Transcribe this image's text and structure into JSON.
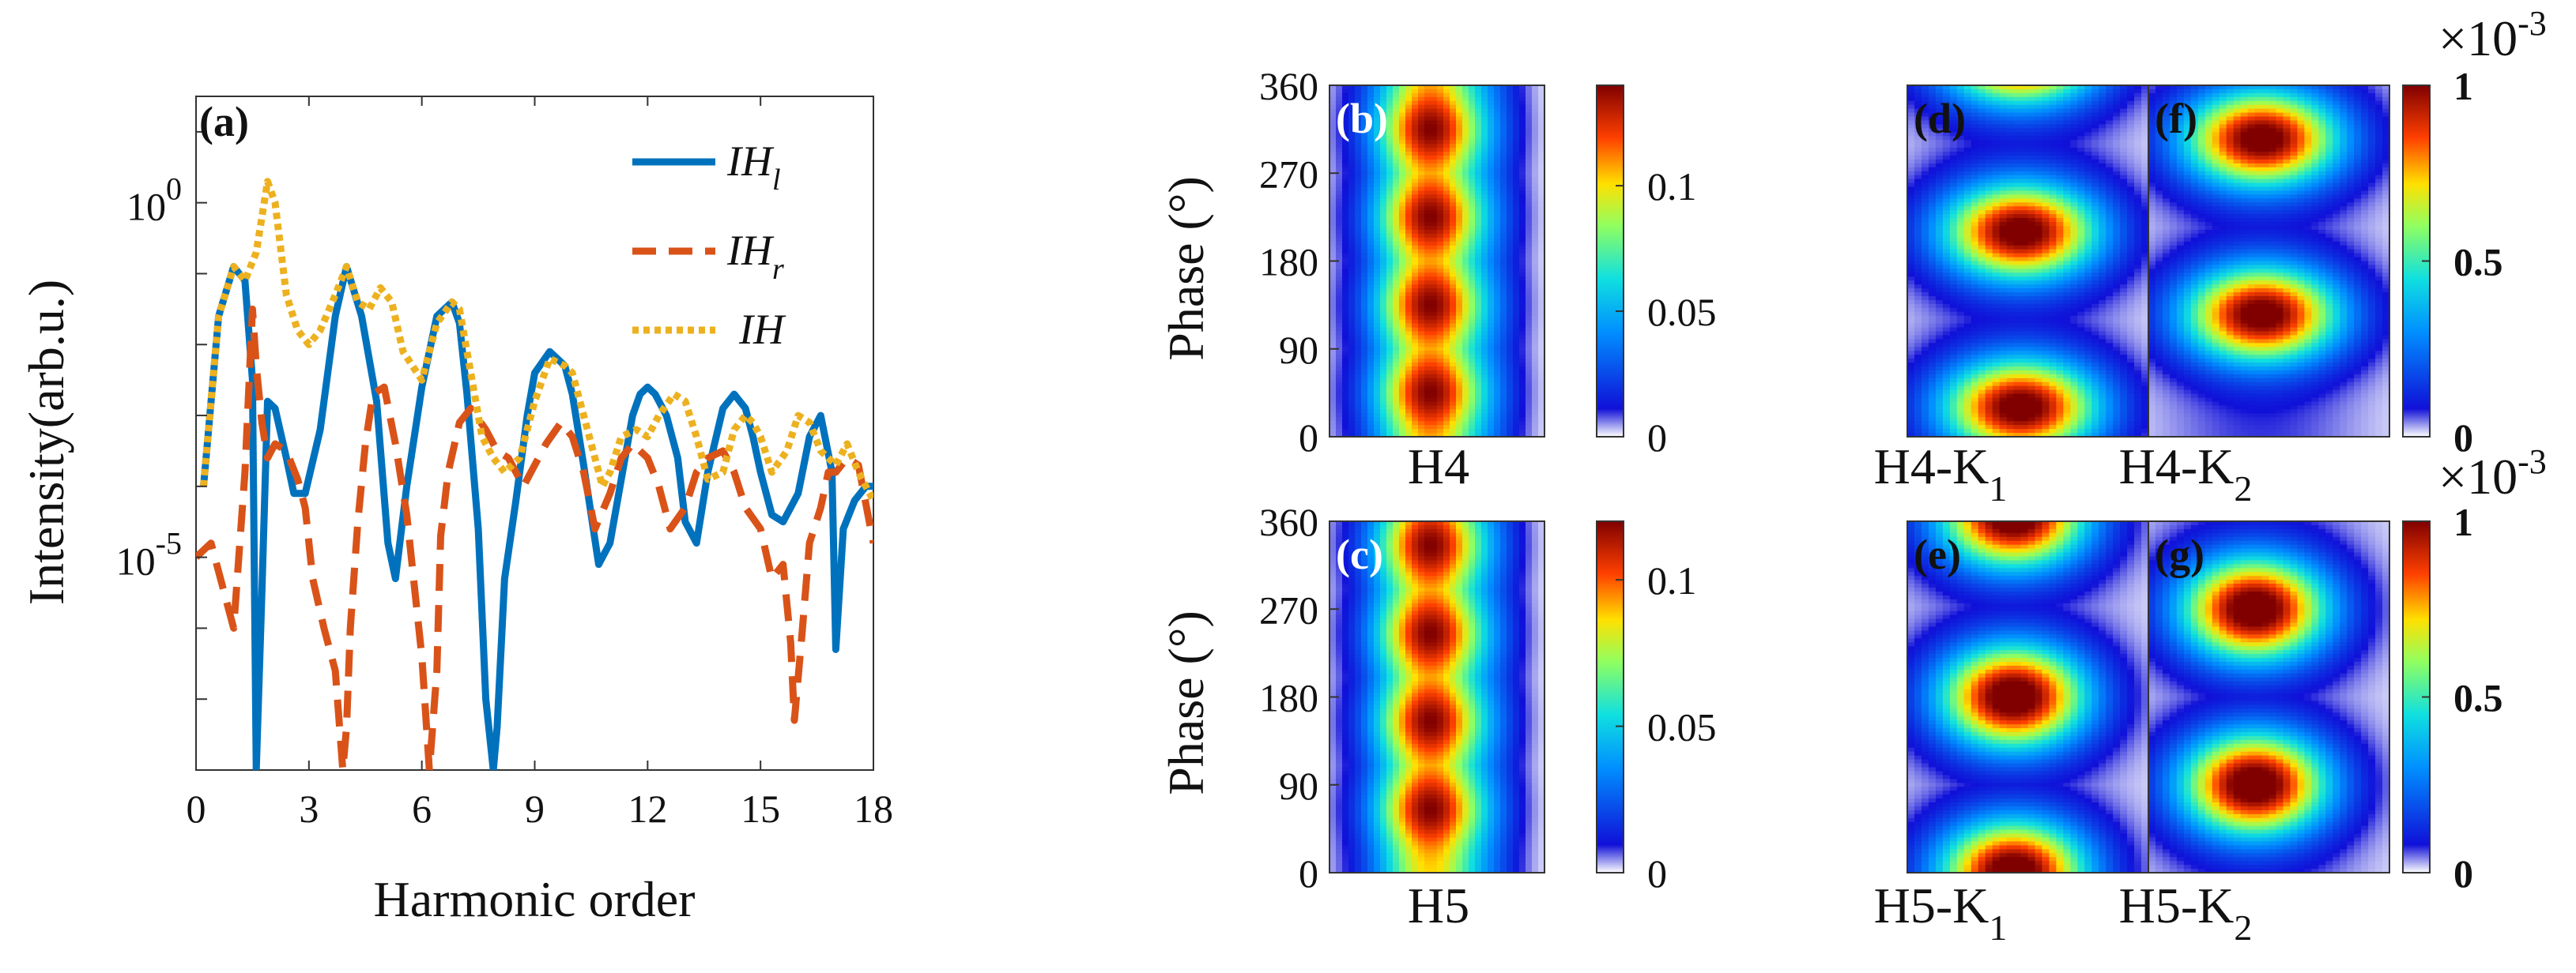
{
  "chart_data": [
    {
      "panel": "(a)",
      "type": "line",
      "yscale": "log",
      "xlabel": "Harmonic order",
      "ylabel": "Intensity(arb.u.)",
      "xlim": [
        0,
        18
      ],
      "ylim_exp": [
        -8,
        1.5
      ],
      "xticks": [
        "0",
        "3",
        "6",
        "9",
        "12",
        "15",
        "18"
      ],
      "yticks": [
        {
          "base": "10",
          "exp": "0",
          "value_exp": 0
        },
        {
          "base": "10",
          "exp": "-5",
          "value_exp": -5
        }
      ],
      "series": [
        {
          "name": "IH",
          "sub": "l",
          "color": "#0072BD",
          "dash": "solid",
          "x": [
            0.2,
            0.6,
            1.0,
            1.3,
            1.5,
            1.6,
            1.75,
            1.9,
            2.1,
            2.4,
            2.6,
            2.9,
            3.3,
            3.7,
            4.0,
            4.4,
            4.8,
            5.1,
            5.3,
            5.6,
            6.0,
            6.4,
            6.8,
            7.0,
            7.2,
            7.5,
            7.7,
            7.9,
            8.0,
            8.2,
            8.5,
            8.8,
            9.0,
            9.4,
            9.8,
            10.0,
            10.3,
            10.7,
            11.0,
            11.3,
            11.6,
            11.8,
            12.0,
            12.2,
            12.5,
            12.8,
            13.0,
            13.3,
            13.6,
            14.0,
            14.3,
            14.6,
            14.8,
            15.0,
            15.3,
            15.6,
            16.0,
            16.3,
            16.6,
            16.9,
            17.0,
            17.2,
            17.5,
            17.8,
            18.0
          ],
          "logy": [
            -4.0,
            -1.6,
            -0.9,
            -1.1,
            -2.5,
            -8.0,
            -5.5,
            -2.8,
            -2.9,
            -3.6,
            -4.1,
            -4.1,
            -3.2,
            -1.6,
            -0.9,
            -1.6,
            -2.8,
            -4.8,
            -5.3,
            -4.0,
            -2.6,
            -1.6,
            -1.4,
            -1.7,
            -2.7,
            -4.6,
            -7.0,
            -8.0,
            -7.4,
            -5.3,
            -4.2,
            -3.0,
            -2.4,
            -2.1,
            -2.3,
            -2.7,
            -3.7,
            -5.1,
            -4.8,
            -3.9,
            -3.0,
            -2.7,
            -2.6,
            -2.7,
            -3.0,
            -3.6,
            -4.5,
            -4.8,
            -3.8,
            -2.9,
            -2.7,
            -2.9,
            -3.3,
            -3.8,
            -4.4,
            -4.5,
            -4.1,
            -3.3,
            -3.0,
            -3.8,
            -6.3,
            -4.6,
            -4.2,
            -4.0,
            -4.0
          ]
        },
        {
          "name": "IH",
          "sub": "r",
          "color": "#D95319",
          "dash": "dashed",
          "x": [
            0.0,
            0.4,
            0.7,
            1.0,
            1.3,
            1.5,
            1.6,
            1.75,
            1.9,
            2.1,
            2.4,
            2.7,
            2.9,
            3.1,
            3.4,
            3.7,
            3.9,
            4.0,
            4.1,
            4.3,
            4.5,
            4.7,
            5.0,
            5.3,
            5.6,
            6.0,
            6.2,
            6.4,
            6.5,
            6.7,
            7.0,
            7.3,
            7.7,
            8.0,
            8.3,
            8.7,
            9.0,
            9.3,
            9.7,
            10.0,
            10.3,
            10.6,
            11.0,
            11.3,
            11.6,
            12.0,
            12.3,
            12.6,
            13.0,
            13.3,
            13.6,
            14.0,
            14.3,
            14.6,
            15.0,
            15.3,
            15.6,
            15.8,
            15.9,
            16.1,
            16.3,
            16.6,
            16.8,
            17.0,
            17.3,
            17.6,
            18.0
          ],
          "logy": [
            -5.0,
            -4.8,
            -5.4,
            -6.0,
            -3.8,
            -1.5,
            -2.3,
            -3.1,
            -3.6,
            -3.4,
            -3.5,
            -3.9,
            -4.3,
            -5.3,
            -6.0,
            -6.6,
            -8.0,
            -7.4,
            -6.0,
            -4.5,
            -3.4,
            -2.7,
            -2.6,
            -3.4,
            -4.4,
            -6.4,
            -8.0,
            -6.6,
            -4.7,
            -3.8,
            -3.1,
            -2.9,
            -3.2,
            -3.5,
            -3.6,
            -4.0,
            -3.7,
            -3.4,
            -3.1,
            -3.3,
            -3.8,
            -4.6,
            -4.1,
            -3.6,
            -3.4,
            -3.6,
            -4.0,
            -4.6,
            -4.3,
            -3.8,
            -3.6,
            -3.5,
            -3.8,
            -4.3,
            -4.6,
            -5.3,
            -5.1,
            -6.2,
            -7.3,
            -6.1,
            -4.8,
            -4.3,
            -3.8,
            -3.8,
            -3.6,
            -3.7,
            -4.8
          ]
        },
        {
          "name": "IH",
          "sub": "",
          "color": "#EDB120",
          "dash": "dotted",
          "x": [
            0.2,
            0.6,
            1.0,
            1.3,
            1.6,
            1.9,
            2.1,
            2.4,
            2.7,
            3.0,
            3.3,
            3.7,
            4.0,
            4.3,
            4.6,
            4.9,
            5.2,
            5.5,
            6.0,
            6.4,
            6.8,
            7.0,
            7.3,
            7.6,
            7.9,
            8.2,
            8.6,
            9.0,
            9.4,
            9.8,
            10.0,
            10.4,
            10.8,
            11.0,
            11.3,
            11.7,
            12.0,
            12.3,
            12.7,
            13.0,
            13.3,
            13.6,
            14.0,
            14.3,
            14.6,
            14.8,
            15.0,
            15.3,
            15.7,
            16.0,
            16.3,
            16.6,
            17.0,
            17.3,
            17.6,
            18.0
          ],
          "logy": [
            -4.0,
            -1.6,
            -0.9,
            -1.1,
            -0.7,
            0.3,
            0.0,
            -1.3,
            -1.8,
            -2.0,
            -1.8,
            -1.3,
            -0.9,
            -1.4,
            -1.5,
            -1.2,
            -1.4,
            -2.1,
            -2.5,
            -1.7,
            -1.4,
            -1.5,
            -2.4,
            -3.3,
            -3.6,
            -3.8,
            -3.6,
            -2.8,
            -2.2,
            -2.3,
            -2.4,
            -3.2,
            -4.0,
            -3.8,
            -3.3,
            -3.2,
            -3.3,
            -3.0,
            -2.7,
            -2.8,
            -3.3,
            -3.9,
            -3.8,
            -3.2,
            -3.0,
            -3.1,
            -3.3,
            -3.8,
            -3.5,
            -3.0,
            -3.1,
            -3.5,
            -3.7,
            -3.4,
            -3.8,
            -4.2
          ]
        }
      ]
    },
    {
      "type": "heatmap",
      "ylabel_top": "Phase (°)",
      "ylabel_bottom": "Phase (°)",
      "yticks": [
        "0",
        "90",
        "180",
        "270",
        "360"
      ],
      "panels": [
        {
          "label": "(b)",
          "xlabel": "H4",
          "group": "top-left",
          "peaks_deg": [
            45,
            135,
            225,
            315
          ],
          "amp": 1.0,
          "style": "band"
        },
        {
          "label": "(c)",
          "xlabel": "H5",
          "group": "bottom-left",
          "peaks_deg": [
            65,
            155,
            245,
            335
          ],
          "amp": 1.0,
          "style": "band"
        },
        {
          "label": "(d)",
          "xlabel_main": "H4-K",
          "xlabel_sub": "1",
          "group": "top-right",
          "peaks_deg": [
            30,
            210,
            390
          ],
          "amp": 0.95,
          "style": "wide"
        },
        {
          "label": "(f)",
          "xlabel_main": "H4-K",
          "xlabel_sub": "2",
          "group": "top-right",
          "peaks_deg": [
            125,
            305
          ],
          "amp": 0.95,
          "style": "wide"
        },
        {
          "label": "(e)",
          "xlabel_main": "H5-K",
          "xlabel_sub": "1",
          "group": "bottom-right",
          "peaks_deg": [
            0,
            180,
            365
          ],
          "amp": 1.0,
          "style": "blob"
        },
        {
          "label": "(g)",
          "xlabel_main": "H5-K",
          "xlabel_sub": "2",
          "group": "bottom-right",
          "peaks_deg": [
            90,
            270
          ],
          "amp": 1.0,
          "style": "blob"
        }
      ],
      "colorbars": [
        {
          "ticks": [
            "0.1",
            "0.05",
            "0"
          ],
          "tick_values": [
            0.1,
            0.05,
            0
          ],
          "max": 0.14,
          "bold": false
        },
        {
          "ticks": [
            "0.1",
            "0.05",
            "0"
          ],
          "tick_values": [
            0.1,
            0.05,
            0
          ],
          "max": 0.12,
          "bold": false
        },
        {
          "ticks": [
            "1",
            "0.5",
            "0"
          ],
          "tick_values": [
            1,
            0.5,
            0
          ],
          "max": 1,
          "bold": true,
          "multiplier_base": "×10",
          "multiplier_exp": "-3"
        },
        {
          "ticks": [
            "1",
            "0.5",
            "0"
          ],
          "tick_values": [
            1,
            0.5,
            0
          ],
          "max": 1,
          "bold": true,
          "multiplier_base": "×10",
          "multiplier_exp": "-3"
        }
      ]
    }
  ]
}
